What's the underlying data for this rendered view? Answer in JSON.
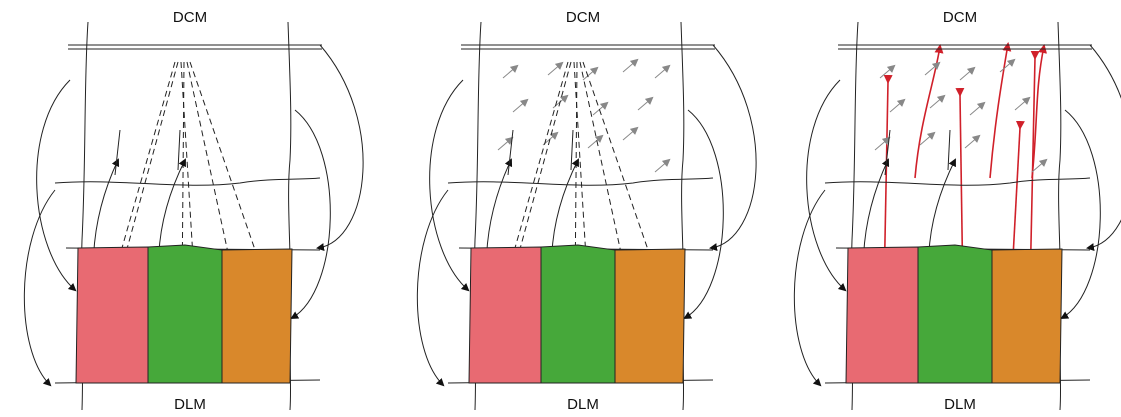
{
  "panels": [
    {
      "top_label": "DCM",
      "bottom_label": "DLM"
    },
    {
      "top_label": "DCM",
      "bottom_label": "DLM"
    },
    {
      "top_label": "DCM",
      "bottom_label": "DLM"
    }
  ]
}
